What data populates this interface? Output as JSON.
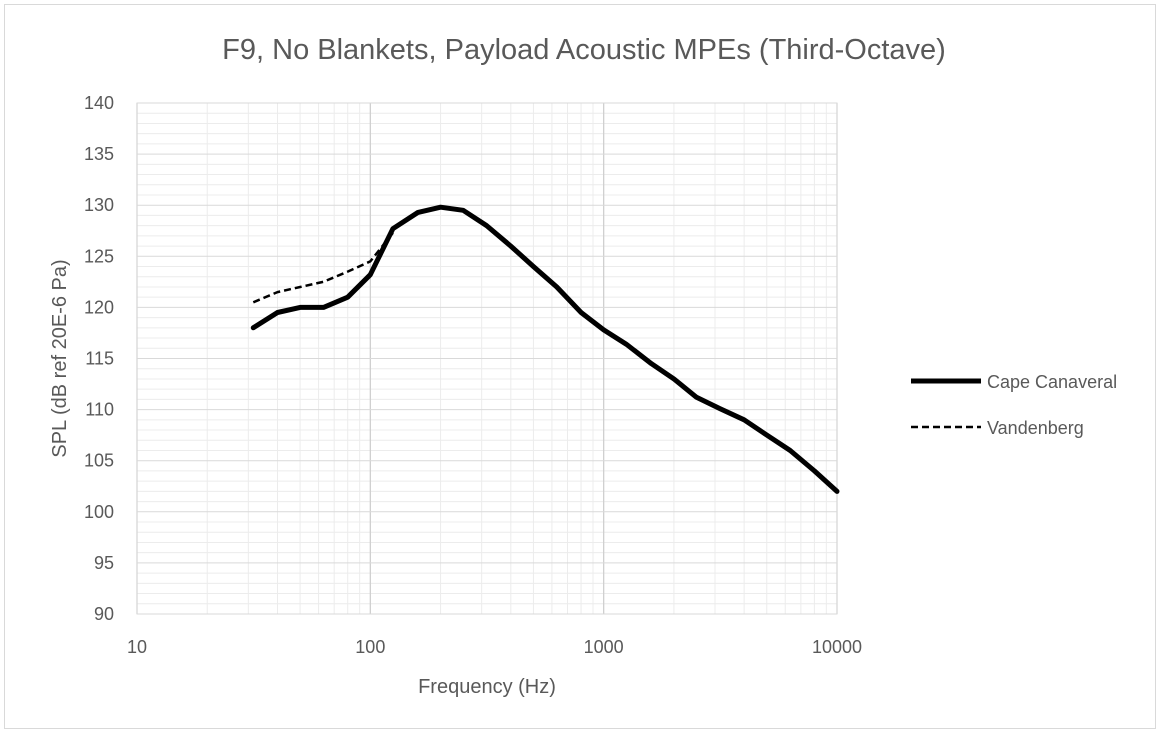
{
  "chart_data": {
    "type": "line",
    "title": "F9, No Blankets, Payload Acoustic MPEs (Third-Octave)",
    "xlabel": "Frequency (Hz)",
    "ylabel": "SPL (dB ref 20E-6 Pa)",
    "x_scale": "log",
    "xlim": [
      10,
      10000
    ],
    "ylim": [
      90,
      140
    ],
    "x_ticks": [
      "10",
      "100",
      "1000",
      "10000"
    ],
    "y_ticks": [
      "90",
      "95",
      "100",
      "105",
      "110",
      "115",
      "120",
      "125",
      "130",
      "135",
      "140"
    ],
    "grid": true,
    "legend_position": "right",
    "series": [
      {
        "name": "Cape Canaveral",
        "style": "solid",
        "color": "#000000",
        "x": [
          31.5,
          40,
          50,
          63,
          80,
          100,
          125,
          160,
          200,
          250,
          315,
          400,
          500,
          630,
          800,
          1000,
          1250,
          1600,
          2000,
          2500,
          3150,
          4000,
          5000,
          6300,
          8000,
          10000
        ],
        "y": [
          118,
          119.5,
          120,
          120,
          121,
          123.2,
          127.7,
          129.3,
          129.8,
          129.5,
          128,
          126,
          124,
          122,
          119.5,
          117.8,
          116.4,
          114.5,
          113,
          111.2,
          110.1,
          109,
          107.5,
          106,
          104,
          102
        ]
      },
      {
        "name": "Vandenberg",
        "style": "dashed",
        "color": "#000000",
        "x": [
          31.5,
          40,
          50,
          63,
          80,
          100,
          125
        ],
        "y": [
          120.5,
          121.5,
          122,
          122.5,
          123.5,
          124.5,
          127.3
        ]
      }
    ]
  }
}
